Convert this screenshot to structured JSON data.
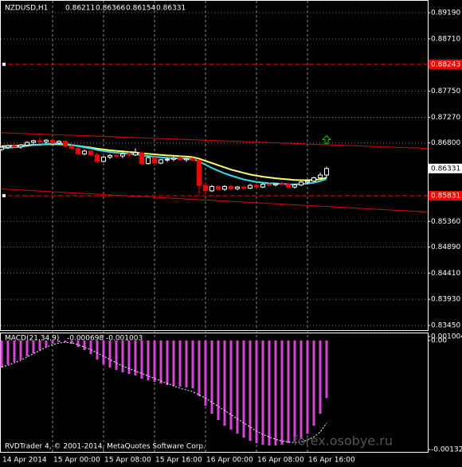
{
  "chart_data": [
    {
      "type": "candlestick",
      "title": "NZDUSD,H1",
      "categories": [
        "14 Apr 2014",
        null,
        null,
        null,
        null,
        null,
        null,
        null,
        "15 Apr 00:00",
        null,
        null,
        null,
        null,
        null,
        null,
        null,
        "15 Apr 08:00",
        null,
        null,
        null,
        null,
        null,
        null,
        null,
        "15 Apr 16:00",
        null,
        null,
        null,
        null,
        null,
        null,
        null,
        "16 Apr 00:00",
        null,
        null,
        null,
        null,
        null,
        null,
        null,
        "16 Apr 08:00",
        null,
        null,
        null,
        null,
        null,
        null,
        null,
        "16 Apr 16:00",
        null,
        null,
        null
      ],
      "open": [
        0.8668,
        0.8672,
        0.8675,
        0.8673,
        0.8676,
        0.8681,
        0.8684,
        0.8682,
        0.8685,
        0.868,
        0.8683,
        0.8674,
        0.867,
        0.866,
        0.8665,
        0.8658,
        0.8646,
        0.8654,
        0.8657,
        0.8656,
        0.866,
        0.8658,
        0.8662,
        0.8642,
        0.8653,
        0.8643,
        0.8649,
        0.865,
        0.8652,
        0.8649,
        0.8651,
        0.8648,
        0.8602,
        0.8592,
        0.86,
        0.8595,
        0.86,
        0.8596,
        0.8599,
        0.8597,
        0.8602,
        0.8599,
        0.8604,
        0.8603,
        0.8605,
        0.8604,
        0.8599,
        0.8603,
        0.8608,
        0.861,
        0.8616,
        0.86211
      ],
      "high": [
        0.8674,
        0.8677,
        0.8679,
        0.8678,
        0.8683,
        0.8686,
        0.869,
        0.8687,
        0.8688,
        0.8685,
        0.8685,
        0.8678,
        0.8672,
        0.8668,
        0.8667,
        0.8662,
        0.8656,
        0.866,
        0.8662,
        0.8663,
        0.8664,
        0.867,
        0.8665,
        0.8656,
        0.8656,
        0.8651,
        0.8654,
        0.8656,
        0.8656,
        0.8653,
        0.8654,
        0.865,
        0.861,
        0.8603,
        0.8602,
        0.8602,
        0.8603,
        0.8601,
        0.8602,
        0.8605,
        0.8606,
        0.8607,
        0.8608,
        0.8607,
        0.8609,
        0.8607,
        0.8605,
        0.8611,
        0.8612,
        0.8618,
        0.8626,
        0.86366
      ],
      "low": [
        0.8665,
        0.8669,
        0.867,
        0.8669,
        0.8674,
        0.8678,
        0.868,
        0.8679,
        0.8678,
        0.8677,
        0.8672,
        0.8668,
        0.8658,
        0.8657,
        0.8656,
        0.8643,
        0.8644,
        0.865,
        0.8653,
        0.8652,
        0.8654,
        0.8656,
        0.8638,
        0.864,
        0.864,
        0.8641,
        0.8645,
        0.8646,
        0.8647,
        0.8645,
        0.8646,
        0.8585,
        0.8587,
        0.859,
        0.8592,
        0.8592,
        0.8593,
        0.8593,
        0.8594,
        0.8595,
        0.8596,
        0.8597,
        0.8601,
        0.86,
        0.8602,
        0.8596,
        0.8596,
        0.8601,
        0.8604,
        0.8608,
        0.8614,
        0.86154
      ],
      "close": [
        0.8672,
        0.8675,
        0.8673,
        0.8676,
        0.8681,
        0.8684,
        0.8682,
        0.8685,
        0.868,
        0.8683,
        0.8674,
        0.867,
        0.866,
        0.8665,
        0.8658,
        0.8646,
        0.8654,
        0.8657,
        0.8656,
        0.866,
        0.8658,
        0.8662,
        0.8642,
        0.8653,
        0.8643,
        0.8649,
        0.865,
        0.8652,
        0.8649,
        0.8651,
        0.8648,
        0.8602,
        0.8592,
        0.86,
        0.8595,
        0.86,
        0.8596,
        0.8599,
        0.8597,
        0.8602,
        0.8599,
        0.8604,
        0.8603,
        0.8605,
        0.8604,
        0.8599,
        0.8603,
        0.8608,
        0.861,
        0.8616,
        0.86211,
        0.86331
      ],
      "up_color": "#ffffff",
      "down_color": "#ff0000",
      "overlays": [
        {
          "color": "#ffff66",
          "values": [
            0.8674,
            0.86745,
            0.8675,
            0.86755,
            0.8676,
            0.86765,
            0.8677,
            0.86775,
            0.86775,
            0.86775,
            0.8677,
            0.8676,
            0.86745,
            0.8673,
            0.86715,
            0.86695,
            0.8668,
            0.86665,
            0.86655,
            0.86645,
            0.86635,
            0.86625,
            0.8661,
            0.866,
            0.8659,
            0.8658,
            0.8657,
            0.86565,
            0.86555,
            0.8655,
            0.8654,
            0.8651,
            0.8647,
            0.8643,
            0.8639,
            0.8635,
            0.8631,
            0.8628,
            0.8625,
            0.8622,
            0.862,
            0.8618,
            0.86165,
            0.8615,
            0.8614,
            0.8613,
            0.8612,
            0.86115,
            0.86115,
            0.8612,
            0.86135,
            0.8616
          ]
        },
        {
          "color": "#33ddee",
          "values": [
            0.867,
            0.8671,
            0.8672,
            0.8673,
            0.86745,
            0.8676,
            0.8677,
            0.8678,
            0.86785,
            0.8679,
            0.8678,
            0.86765,
            0.8674,
            0.8672,
            0.867,
            0.8667,
            0.8665,
            0.86635,
            0.8662,
            0.8661,
            0.866,
            0.86595,
            0.8657,
            0.8656,
            0.86545,
            0.86535,
            0.86525,
            0.8652,
            0.86515,
            0.8651,
            0.86505,
            0.8646,
            0.864,
            0.8634,
            0.8629,
            0.8624,
            0.862,
            0.86165,
            0.8613,
            0.86105,
            0.86085,
            0.8607,
            0.8606,
            0.86055,
            0.8605,
            0.8604,
            0.8604,
            0.86045,
            0.86055,
            0.8607,
            0.861,
            0.8614
          ]
        }
      ],
      "trend_lines": [
        {
          "color": "#dd0000",
          "start": 0.86989,
          "end": 0.86698
        },
        {
          "color": "#dd0000",
          "start": 0.85955,
          "end": 0.85532
        }
      ],
      "levels": [
        0.88243,
        0.85831
      ],
      "level_color": "#ff0000",
      "signal_arrow": {
        "value": 0.86859,
        "color": "#00cc00"
      },
      "ylim": [
        0.83363,
        0.89409
      ],
      "yticks": [
        {
          "value": 0.8919,
          "label": "0.89190"
        },
        {
          "value": 0.8871,
          "label": "0.88710"
        },
        {
          "value": 0.8775,
          "label": "0.87750"
        },
        {
          "value": 0.8727,
          "label": "0.87270"
        },
        {
          "value": 0.868,
          "label": "0.86800"
        },
        {
          "value": 0.8536,
          "label": "0.85360"
        },
        {
          "value": 0.8489,
          "label": "0.84890"
        },
        {
          "value": 0.8441,
          "label": "0.84410"
        },
        {
          "value": 0.8393,
          "label": "0.83930"
        },
        {
          "value": 0.8345,
          "label": "0.83450"
        }
      ],
      "grid": true
    },
    {
      "type": "macd",
      "title": "MACD(21,34,9)",
      "color": "#e040e0",
      "values": [
        -0.000328,
        -0.00029,
        -0.000261,
        -0.000232,
        -0.000193,
        -0.000155,
        -0.000116,
        -7.7e-05,
        -3.9e-05,
        -1.9e-05,
        -1.9e-05,
        -3.9e-05,
        -7.7e-05,
        -0.000116,
        -0.000164,
        -0.000232,
        -0.00029,
        -0.000328,
        -0.000357,
        -0.000386,
        -0.000406,
        -0.000425,
        -0.000464,
        -0.000483,
        -0.000502,
        -0.000522,
        -0.000541,
        -0.000551,
        -0.00056,
        -0.00057,
        -0.00058,
        -0.000676,
        -0.000792,
        -0.000889,
        -0.000966,
        -0.001034,
        -0.001082,
        -0.00113,
        -0.001179,
        -0.001217,
        -0.001246,
        -0.001265,
        -0.001275,
        -0.001275,
        -0.001265,
        -0.001246,
        -0.001227,
        -0.001198,
        -0.00113,
        -0.001034,
        -0.000889,
        -0.000698
      ],
      "signal": {
        "color": "#ffffff",
        "values": [
          -0.00032,
          -0.0003,
          -0.00027,
          -0.00024,
          -0.0002,
          -0.00016,
          -0.00012,
          -8e-05,
          -5e-05,
          -3e-05,
          -2e-05,
          -3e-05,
          -5e-05,
          -8e-05,
          -0.00011,
          -0.00015,
          -0.00019,
          -0.00023,
          -0.00027,
          -0.00031,
          -0.00034,
          -0.00037,
          -0.0004,
          -0.00043,
          -0.00046,
          -0.00049,
          -0.00052,
          -0.00055,
          -0.00058,
          -0.0006,
          -0.00062,
          -0.00066,
          -0.0007,
          -0.00075,
          -0.0008,
          -0.00085,
          -0.0009,
          -0.00095,
          -0.001,
          -0.00105,
          -0.0011,
          -0.00114,
          -0.00117,
          -0.0012,
          -0.00122,
          -0.00123,
          -0.00124,
          -0.00123,
          -0.00121,
          -0.00117,
          -0.00111,
          -0.001003
        ]
      },
      "ylim": [
        -0.001352,
        9.7e-05
      ],
      "yticks": [
        0.001004,
        {
          "value": 0,
          "label": "0.00"
        },
        -0.001323
      ],
      "footer": "RVDTrader 4, © 2001-2014, MetaQuotes Software Corp.",
      "watermark": "forex.osobye.ru"
    }
  ]
}
